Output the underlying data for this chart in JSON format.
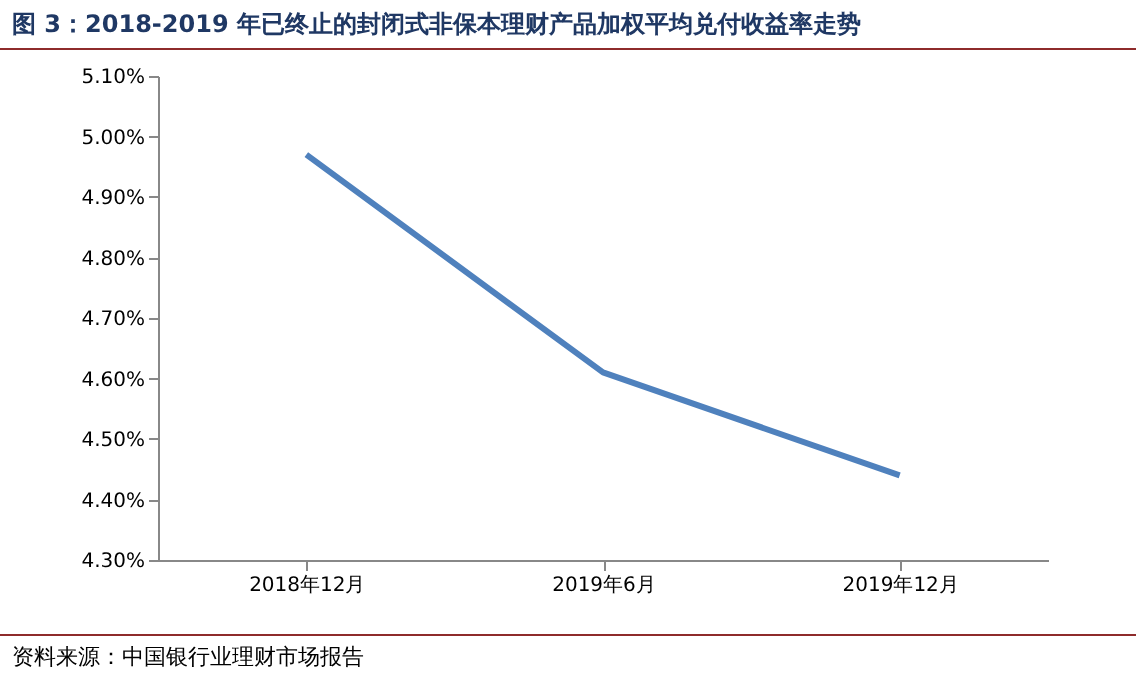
{
  "chart_data": {
    "type": "line",
    "title": "图 3：2018-2019 年已终止的封闭式非保本理财产品加权平均兑付收益率走势",
    "categories": [
      "2018年12月",
      "2019年6月",
      "2019年12月"
    ],
    "series": [
      {
        "color": "#4f81bd",
        "values": [
          4.97,
          4.61,
          4.44
        ]
      }
    ],
    "ylim": [
      4.3,
      5.1
    ],
    "yticks": [
      {
        "value": 4.3,
        "label": "4.30%"
      },
      {
        "value": 4.4,
        "label": "4.40%"
      },
      {
        "value": 4.5,
        "label": "4.50%"
      },
      {
        "value": 4.6,
        "label": "4.60%"
      },
      {
        "value": 4.7,
        "label": "4.70%"
      },
      {
        "value": 4.8,
        "label": "4.80%"
      },
      {
        "value": 4.9,
        "label": "4.90%"
      },
      {
        "value": 5.0,
        "label": "5.00%"
      },
      {
        "value": 5.1,
        "label": "5.10%"
      }
    ],
    "grid": false,
    "legend": false,
    "marker": "none",
    "line_style": "solid",
    "annotations": [
      "资料来源：中国银行业理财市场报告"
    ]
  }
}
